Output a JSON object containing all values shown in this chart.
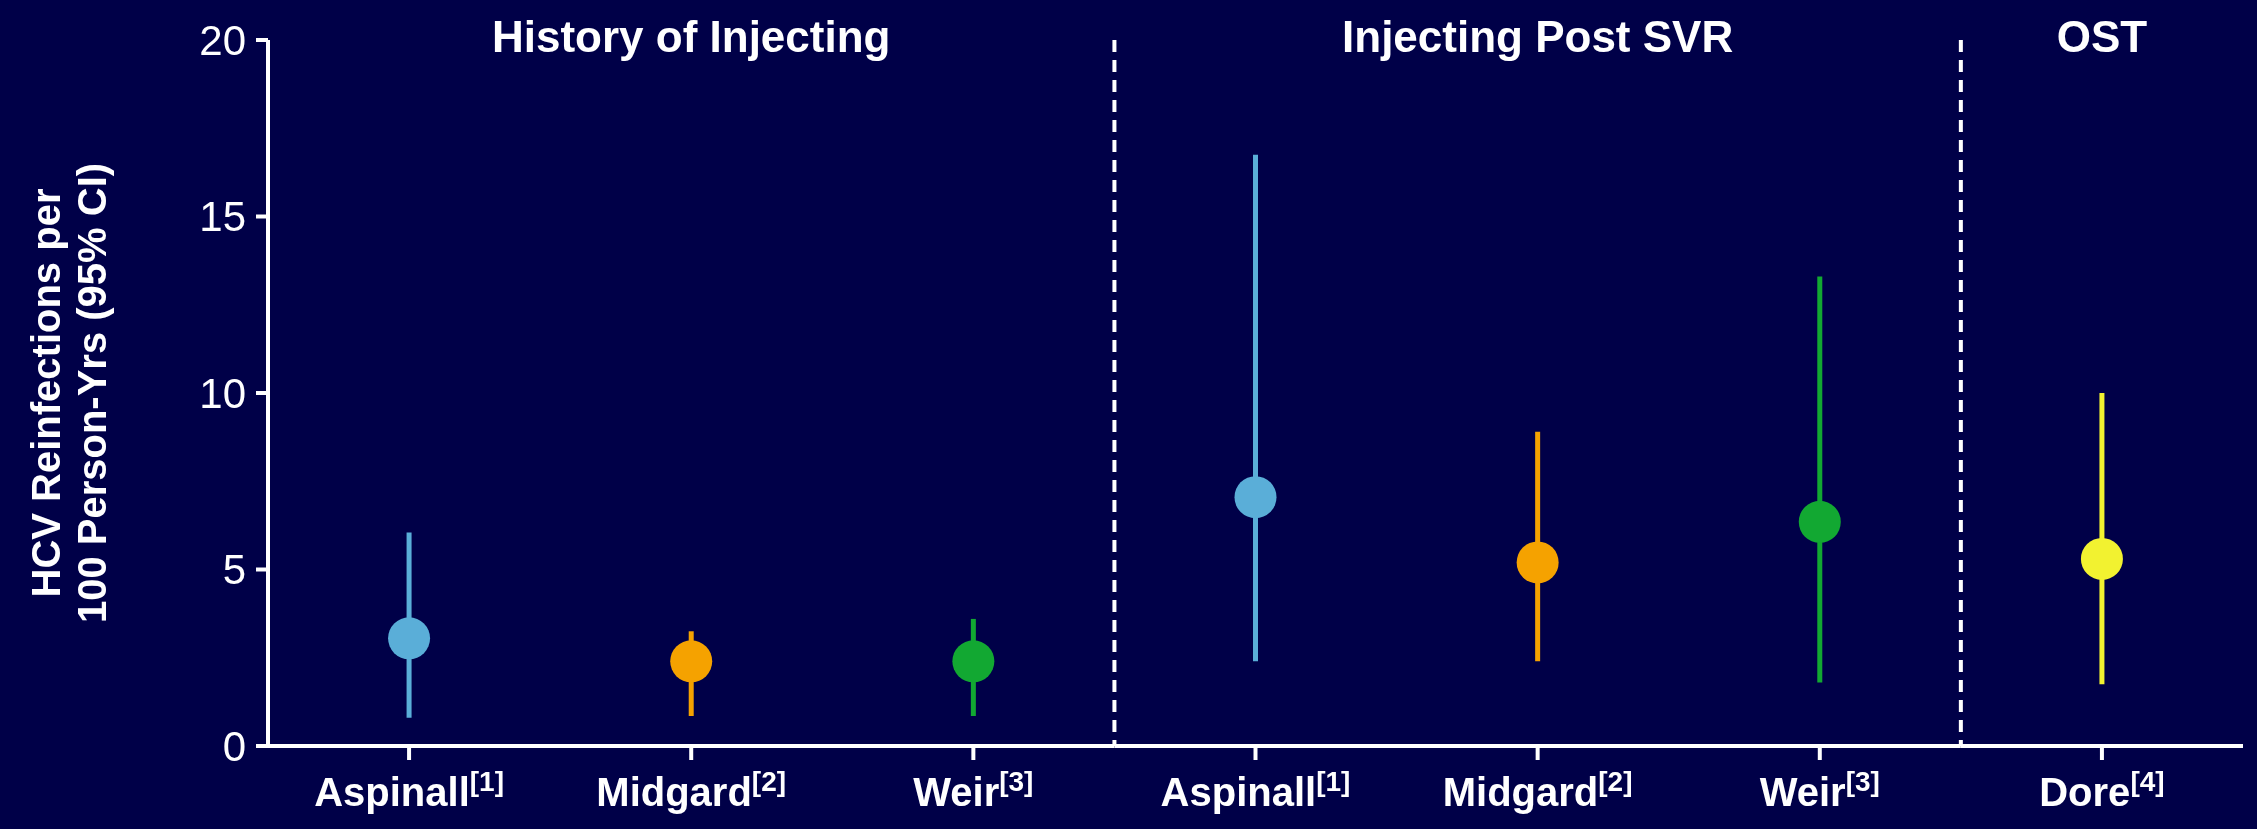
{
  "chart_data": [
    {
      "type": "scatter",
      "title": "History of Injecting",
      "ylabel": "HCV Reinfections per 100 Person-Yrs (95% CI)",
      "categories": [
        "Aspinall$^{[1]}$",
        "Midgard$^{[2]}$",
        "Weir$^{[3]}$"
      ],
      "values": [
        3.05,
        2.4,
        2.4
      ],
      "errors": [
        [
          0.8,
          6.05
        ],
        [
          0.85,
          3.25
        ],
        [
          0.85,
          3.6
        ]
      ],
      "colors": [
        "#5aaed8",
        "#f5a200",
        "#12a832"
      ],
      "ylim": [
        0,
        20
      ],
      "yticks": [
        0,
        5,
        10,
        15,
        20
      ],
      "marker": "circle"
    },
    {
      "type": "scatter",
      "title": "Injecting Post SVR",
      "categories": [
        "Aspinall$^{[1]}$",
        "Midgard$^{[2]}$",
        "Weir$^{[3]}$"
      ],
      "values": [
        7.05,
        5.2,
        6.35
      ],
      "errors": [
        [
          2.4,
          16.75
        ],
        [
          2.4,
          8.9
        ],
        [
          1.8,
          13.3
        ]
      ],
      "colors": [
        "#5aaed8",
        "#f5a200",
        "#12a832"
      ],
      "ylim": [
        0,
        20
      ],
      "tick_labels": "x",
      "marker": "circle"
    },
    {
      "type": "scatter",
      "title": "OST",
      "categories": [
        "Dore$^{[4]}$"
      ],
      "values": [
        5.3
      ],
      "errors": [
        [
          1.75,
          10.0
        ]
      ],
      "colors": [
        "#f2f230"
      ],
      "ylim": [
        0,
        20
      ],
      "tick_labels": "x",
      "marker": "circle"
    }
  ]
}
